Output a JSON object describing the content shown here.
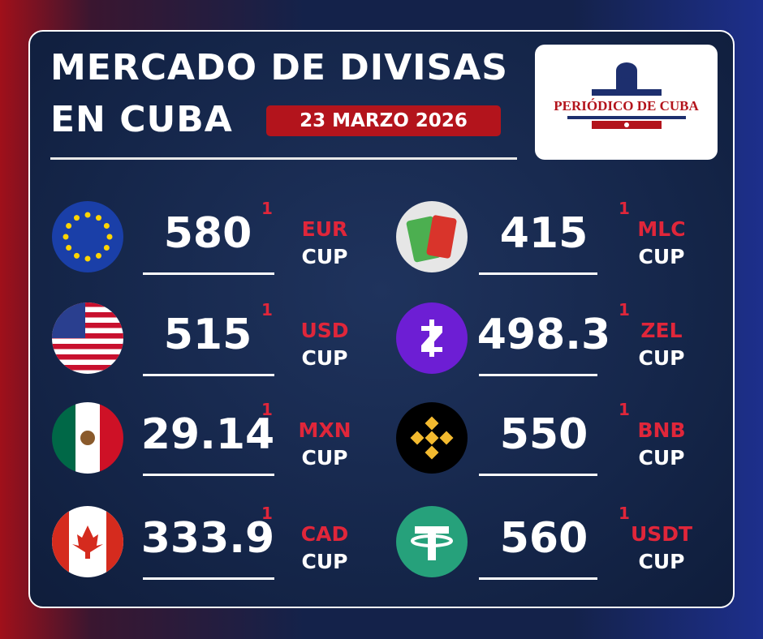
{
  "header": {
    "title_line1": "MERCADO DE DIVISAS",
    "title_line2": "EN CUBA",
    "date": "23 MARZO 2026",
    "logo": "PERIÓDICO DE CUBA"
  },
  "rates": [
    {
      "value": "580",
      "change": "1",
      "currency": "EUR",
      "base": "CUP"
    },
    {
      "value": "515",
      "change": "1",
      "currency": "USD",
      "base": "CUP"
    },
    {
      "value": "29.14",
      "change": "1",
      "currency": "MXN",
      "base": "CUP"
    },
    {
      "value": "333.9",
      "change": "1",
      "currency": "CAD",
      "base": "CUP"
    },
    {
      "value": "415",
      "change": "1",
      "currency": "MLC",
      "base": "CUP"
    },
    {
      "value": "498.3",
      "change": "1",
      "currency": "ZEL",
      "base": "CUP"
    },
    {
      "value": "550",
      "change": "1",
      "currency": "BNB",
      "base": "CUP"
    },
    {
      "value": "560",
      "change": "1",
      "currency": "USDT",
      "base": "CUP"
    }
  ]
}
